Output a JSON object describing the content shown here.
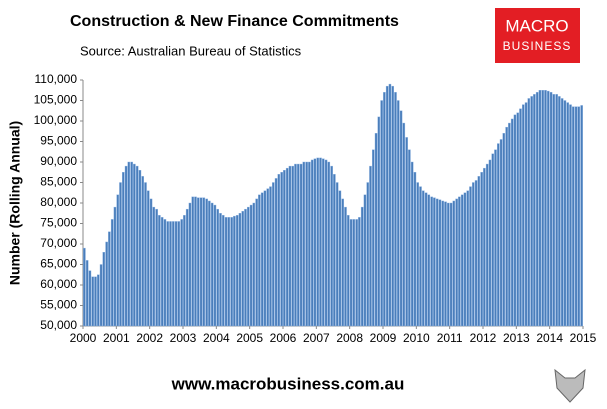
{
  "chart_data": {
    "type": "bar",
    "title": "Construction & New Finance Commitments",
    "subtitle": "Source: Australian  Bureau of Statistics",
    "ylabel": "Number (Rolling Annual)",
    "brand": [
      "MACRO",
      "BUSINESS"
    ],
    "website": "www.macrobusiness.com.au",
    "color": "#4a7ebb",
    "xlim": [
      2000,
      2015
    ],
    "xticks": [
      2000,
      2001,
      2002,
      2003,
      2004,
      2005,
      2006,
      2007,
      2008,
      2009,
      2010,
      2011,
      2012,
      2013,
      2014,
      2015
    ],
    "ylim": [
      50000,
      110000
    ],
    "yticks": [
      {
        "value": 50000,
        "label": "50,000"
      },
      {
        "value": 55000,
        "label": "55,000"
      },
      {
        "value": 60000,
        "label": "60,000"
      },
      {
        "value": 65000,
        "label": "65,000"
      },
      {
        "value": 70000,
        "label": "70,000"
      },
      {
        "value": 75000,
        "label": "75,000"
      },
      {
        "value": 80000,
        "label": "80,000"
      },
      {
        "value": 85000,
        "label": "85,000"
      },
      {
        "value": 90000,
        "label": "90,000"
      },
      {
        "value": 95000,
        "label": "95,000"
      },
      {
        "value": 100000,
        "label": "100,000"
      },
      {
        "value": 105000,
        "label": "105,000"
      },
      {
        "value": 110000,
        "label": "110,000"
      }
    ],
    "x": [
      2000,
      2000.083,
      2000.167,
      2000.25,
      2000.333,
      2000.417,
      2000.5,
      2000.583,
      2000.667,
      2000.75,
      2000.833,
      2000.917,
      2001,
      2001.083,
      2001.167,
      2001.25,
      2001.333,
      2001.417,
      2001.5,
      2001.583,
      2001.667,
      2001.75,
      2001.833,
      2001.917,
      2002,
      2002.083,
      2002.167,
      2002.25,
      2002.333,
      2002.417,
      2002.5,
      2002.583,
      2002.667,
      2002.75,
      2002.833,
      2002.917,
      2003,
      2003.083,
      2003.167,
      2003.25,
      2003.333,
      2003.417,
      2003.5,
      2003.583,
      2003.667,
      2003.75,
      2003.833,
      2003.917,
      2004,
      2004.083,
      2004.167,
      2004.25,
      2004.333,
      2004.417,
      2004.5,
      2004.583,
      2004.667,
      2004.75,
      2004.833,
      2004.917,
      2005,
      2005.083,
      2005.167,
      2005.25,
      2005.333,
      2005.417,
      2005.5,
      2005.583,
      2005.667,
      2005.75,
      2005.833,
      2005.917,
      2006,
      2006.083,
      2006.167,
      2006.25,
      2006.333,
      2006.417,
      2006.5,
      2006.583,
      2006.667,
      2006.75,
      2006.833,
      2006.917,
      2007,
      2007.083,
      2007.167,
      2007.25,
      2007.333,
      2007.417,
      2007.5,
      2007.583,
      2007.667,
      2007.75,
      2007.833,
      2007.917,
      2008,
      2008.083,
      2008.167,
      2008.25,
      2008.333,
      2008.417,
      2008.5,
      2008.583,
      2008.667,
      2008.75,
      2008.833,
      2008.917,
      2009,
      2009.083,
      2009.167,
      2009.25,
      2009.333,
      2009.417,
      2009.5,
      2009.583,
      2009.667,
      2009.75,
      2009.833,
      2009.917,
      2010,
      2010.083,
      2010.167,
      2010.25,
      2010.333,
      2010.417,
      2010.5,
      2010.583,
      2010.667,
      2010.75,
      2010.833,
      2010.917,
      2011,
      2011.083,
      2011.167,
      2011.25,
      2011.333,
      2011.417,
      2011.5,
      2011.583,
      2011.667,
      2011.75,
      2011.833,
      2011.917,
      2012,
      2012.083,
      2012.167,
      2012.25,
      2012.333,
      2012.417,
      2012.5,
      2012.583,
      2012.667,
      2012.75,
      2012.833,
      2012.917,
      2013,
      2013.083,
      2013.167,
      2013.25,
      2013.333,
      2013.417,
      2013.5,
      2013.583,
      2013.667,
      2013.75,
      2013.833,
      2013.917,
      2014,
      2014.083,
      2014.167,
      2014.25,
      2014.333,
      2014.417,
      2014.5,
      2014.583,
      2014.667,
      2014.75,
      2014.833,
      2014.917
    ],
    "values": [
      69000,
      66000,
      63500,
      62000,
      62000,
      62500,
      65000,
      68000,
      70500,
      73000,
      76000,
      79000,
      82000,
      85000,
      87500,
      89000,
      90000,
      90000,
      89500,
      89000,
      88000,
      86500,
      85000,
      83000,
      81000,
      79000,
      78500,
      77000,
      76500,
      76000,
      75500,
      75500,
      75500,
      75500,
      75500,
      76000,
      77000,
      78500,
      80000,
      81500,
      81500,
      81300,
      81300,
      81300,
      81000,
      80500,
      80000,
      79500,
      78500,
      77500,
      77000,
      76500,
      76500,
      76500,
      76800,
      77000,
      77500,
      78000,
      78500,
      79000,
      79500,
      80000,
      81000,
      82000,
      82500,
      83000,
      83500,
      84000,
      85000,
      86000,
      87000,
      87500,
      88000,
      88500,
      89000,
      89000,
      89500,
      89500,
      89500,
      90000,
      90000,
      90000,
      90500,
      90800,
      91000,
      91000,
      90800,
      90500,
      90000,
      89000,
      87000,
      85000,
      83000,
      81000,
      79000,
      77000,
      76000,
      76000,
      76000,
      76500,
      79000,
      82000,
      85000,
      89000,
      93000,
      97000,
      101000,
      105000,
      107000,
      108500,
      109000,
      108500,
      107000,
      105000,
      102500,
      99500,
      96000,
      93000,
      90000,
      87500,
      85000,
      84000,
      83000,
      82500,
      82000,
      81500,
      81300,
      81000,
      80800,
      80500,
      80300,
      80000,
      80000,
      80500,
      81000,
      81500,
      82000,
      82500,
      83000,
      84000,
      85000,
      85500,
      86500,
      87500,
      88500,
      89500,
      90500,
      92000,
      93000,
      94500,
      95500,
      97000,
      98500,
      99500,
      100500,
      101500,
      102000,
      103000,
      104000,
      104500,
      105500,
      106000,
      106500,
      107000,
      107500,
      107500,
      107500,
      107300,
      107000,
      106500,
      106500,
      106000,
      105500,
      105000,
      104500,
      104000,
      103500,
      103500,
      103500,
      103800
    ]
  }
}
